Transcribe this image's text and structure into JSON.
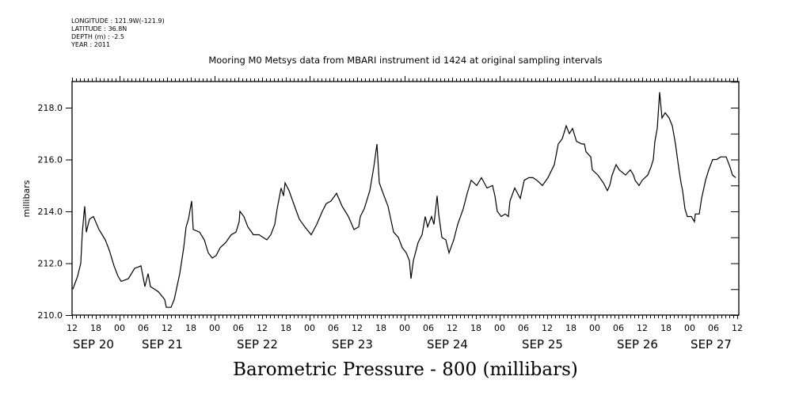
{
  "header": {
    "longitude": "LONGITUDE : 121.9W(-121.9)",
    "latitude": "LATITUDE : 36.8N",
    "depth": "DEPTH (m) : -2.5",
    "year": "YEAR : 2011"
  },
  "chart_data": {
    "type": "line",
    "title": "Mooring M0 Metsys data from MBARI instrument id 1424 at original sampling intervals",
    "xlabel": "Barometric Pressure - 800 (millibars)",
    "ylabel": "millibars",
    "x_units": "hours since SEP 20 12:00",
    "xlim": [
      0,
      168
    ],
    "ylim": [
      210,
      219
    ],
    "y_ticks": [
      "210.0",
      "212.0",
      "214.0",
      "216.0",
      "218.0"
    ],
    "x_tick_labels": [
      "12",
      "18",
      "00",
      "06",
      "12",
      "18",
      "00",
      "06",
      "12",
      "18",
      "00",
      "06",
      "12",
      "18",
      "00",
      "06",
      "12",
      "18",
      "00",
      "06",
      "12",
      "18",
      "00",
      "06",
      "12",
      "18",
      "00",
      "06",
      "12"
    ],
    "date_labels": [
      "SEP 20",
      "SEP 21",
      "SEP 22",
      "SEP 23",
      "SEP 24",
      "SEP 25",
      "SEP 26",
      "SEP 27"
    ],
    "grid": false,
    "series": [
      {
        "name": "Barometric Pressure - 800",
        "color": "#000000",
        "x": [
          0.2,
          1.4,
          2.2,
          2.6,
          3.0,
          3.2,
          3.6,
          4.4,
          5.4,
          6.8,
          8.4,
          9.4,
          10.6,
          11.6,
          12.4,
          14.2,
          15.8,
          17.4,
          18.4,
          19.2,
          19.8,
          21.8,
          23.4,
          23.8,
          25.0,
          25.8,
          27.2,
          28.2,
          28.8,
          29.4,
          30.2,
          30.6,
          32.2,
          33.4,
          34.4,
          35.4,
          36.4,
          37.4,
          38.8,
          40.2,
          41.4,
          42.2,
          42.4,
          43.4,
          44.4,
          45.8,
          47.2,
          49.2,
          50.2,
          51.2,
          51.8,
          52.8,
          53.4,
          53.8,
          54.8,
          56.2,
          57.4,
          58.8,
          60.4,
          61.8,
          63.2,
          64.2,
          65.4,
          66.8,
          68.2,
          69.8,
          71.2,
          72.4,
          72.8,
          73.8,
          75.2,
          76.2,
          77.0,
          77.6,
          78.8,
          79.8,
          81.2,
          82.4,
          83.4,
          84.4,
          85.2,
          85.6,
          86.2,
          87.4,
          88.4,
          89.2,
          89.8,
          90.8,
          91.4,
          92.2,
          92.6,
          93.4,
          94.4,
          95.2,
          96.4,
          97.4,
          98.8,
          99.8,
          100.8,
          102.2,
          103.4,
          104.8,
          106.2,
          106.8,
          107.4,
          108.4,
          109.4,
          110.2,
          110.6,
          111.8,
          113.2,
          114.2,
          115.4,
          116.4,
          117.4,
          118.8,
          120.2,
          121.8,
          122.8,
          123.8,
          124.8,
          125.6,
          126.4,
          127.4,
          128.8,
          129.4,
          129.8,
          131.0,
          131.4,
          132.8,
          134.2,
          135.2,
          135.8,
          136.4,
          137.4,
          138.2,
          139.8,
          141.0,
          141.8,
          142.2,
          143.2,
          144.0,
          145.4,
          146.2,
          146.8,
          147.2,
          147.8,
          148.4,
          149.0,
          149.8,
          150.8,
          151.6,
          152.4,
          153.2,
          153.8,
          154.2,
          154.8,
          155.4,
          156.4,
          157.2,
          157.4,
          158.4,
          159.0,
          160.0,
          160.8,
          161.8,
          162.8,
          163.8,
          165.2,
          166.2,
          166.8,
          167.6
        ],
        "values": [
          211.0,
          211.5,
          212.0,
          213.2,
          213.9,
          214.2,
          213.2,
          213.7,
          213.8,
          213.3,
          212.9,
          212.5,
          211.9,
          211.5,
          211.3,
          211.4,
          211.8,
          211.9,
          211.1,
          211.6,
          211.1,
          210.9,
          210.6,
          210.3,
          210.3,
          210.6,
          211.6,
          212.6,
          213.4,
          213.7,
          214.4,
          213.3,
          213.2,
          212.9,
          212.4,
          212.2,
          212.3,
          212.6,
          212.8,
          213.1,
          213.2,
          213.6,
          214.0,
          213.8,
          213.4,
          213.1,
          213.1,
          212.9,
          213.1,
          213.5,
          214.1,
          214.9,
          214.6,
          215.1,
          214.8,
          214.2,
          213.7,
          213.4,
          213.1,
          213.5,
          214.0,
          214.3,
          214.4,
          214.7,
          214.2,
          213.8,
          213.3,
          213.4,
          213.8,
          214.1,
          214.8,
          215.7,
          216.6,
          215.1,
          214.6,
          214.2,
          213.2,
          213.0,
          212.6,
          212.4,
          212.1,
          211.4,
          212.1,
          212.8,
          213.1,
          213.8,
          213.4,
          213.8,
          213.5,
          214.6,
          213.9,
          213.0,
          212.9,
          212.4,
          212.9,
          213.5,
          214.1,
          214.7,
          215.2,
          215.0,
          215.3,
          214.9,
          215.0,
          214.6,
          214.0,
          213.8,
          213.9,
          213.8,
          214.4,
          214.9,
          214.5,
          215.2,
          215.3,
          215.3,
          215.2,
          215.0,
          215.3,
          215.8,
          216.6,
          216.8,
          217.3,
          217.0,
          217.2,
          216.7,
          216.6,
          216.6,
          216.3,
          216.1,
          215.6,
          215.4,
          215.1,
          214.8,
          215.0,
          215.4,
          215.8,
          215.6,
          215.4,
          215.6,
          215.4,
          215.2,
          215.0,
          215.2,
          215.4,
          215.7,
          216.0,
          216.7,
          217.2,
          218.6,
          217.6,
          217.8,
          217.6,
          217.3,
          216.6,
          215.7,
          215.1,
          214.8,
          214.1,
          213.8,
          213.8,
          213.6,
          213.9,
          213.9,
          214.5,
          215.2,
          215.6,
          216.0,
          216.0,
          216.1,
          216.1,
          215.7,
          215.4,
          215.3
        ]
      }
    ]
  }
}
